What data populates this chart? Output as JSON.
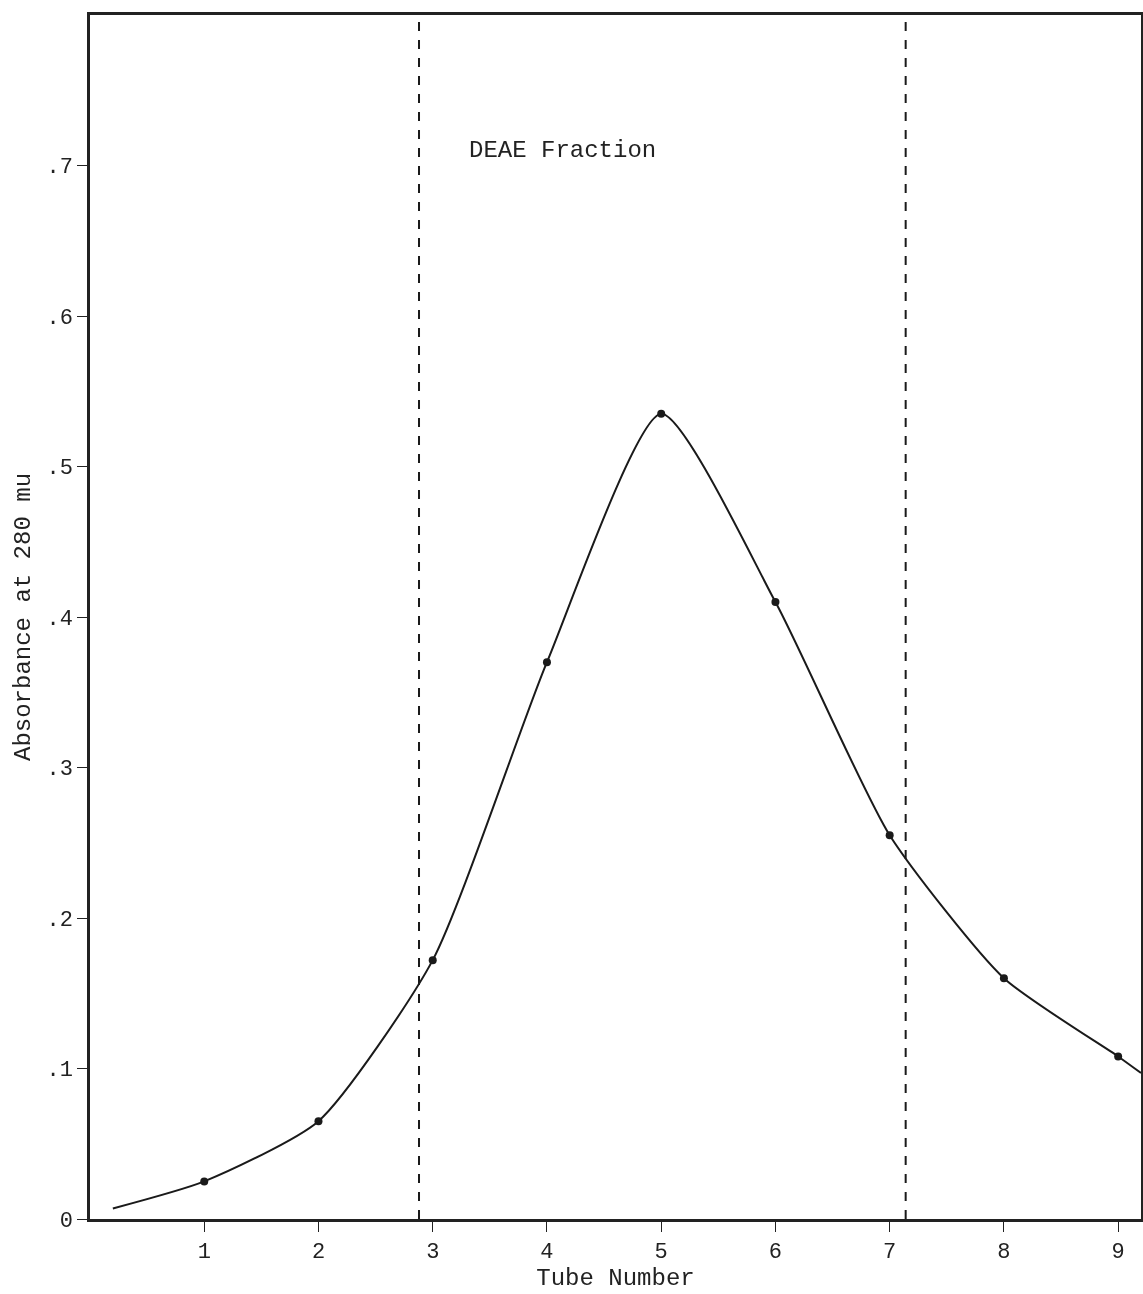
{
  "chart_data": {
    "type": "line",
    "xlabel": "Tube Number",
    "ylabel": "Absorbance at 280 mu",
    "xlim": [
      0,
      9.2
    ],
    "ylim": [
      0,
      0.8
    ],
    "xticks": [
      1,
      2,
      3,
      4,
      5,
      6,
      7,
      8,
      9
    ],
    "yticks": [
      {
        "value": 0,
        "label": "0"
      },
      {
        "value": 0.1,
        "label": ".1"
      },
      {
        "value": 0.2,
        "label": ".2"
      },
      {
        "value": 0.3,
        "label": ".3"
      },
      {
        "value": 0.4,
        "label": ".4"
      },
      {
        "value": 0.5,
        "label": ".5"
      },
      {
        "value": 0.6,
        "label": ".6"
      },
      {
        "value": 0.7,
        "label": ".7"
      }
    ],
    "series": [
      {
        "color": "#1a1a1a",
        "marker": "none",
        "x": [
          0.2,
          1,
          2,
          3,
          4,
          5,
          6,
          7,
          8,
          9,
          9.2
        ],
        "values": [
          0.007,
          0.025,
          0.065,
          0.172,
          0.37,
          0.535,
          0.41,
          0.255,
          0.16,
          0.108,
          0.097
        ]
      },
      {
        "type": "scatter",
        "color": "#1a1a1a",
        "marker": "circle",
        "x": [
          1,
          2,
          3,
          4,
          5,
          6,
          7,
          8,
          9
        ],
        "values": [
          0.025,
          0.065,
          0.172,
          0.37,
          0.535,
          0.41,
          0.255,
          0.16,
          0.108
        ]
      }
    ],
    "ref_lines": [
      {
        "axis": "x",
        "value": 2.88,
        "color": "#1a1a1a",
        "line_style": "dashed"
      },
      {
        "axis": "x",
        "value": 7.14,
        "color": "#1a1a1a",
        "line_style": "dashed"
      }
    ],
    "annotations": [
      "DEAE Fraction"
    ],
    "grid": false
  }
}
